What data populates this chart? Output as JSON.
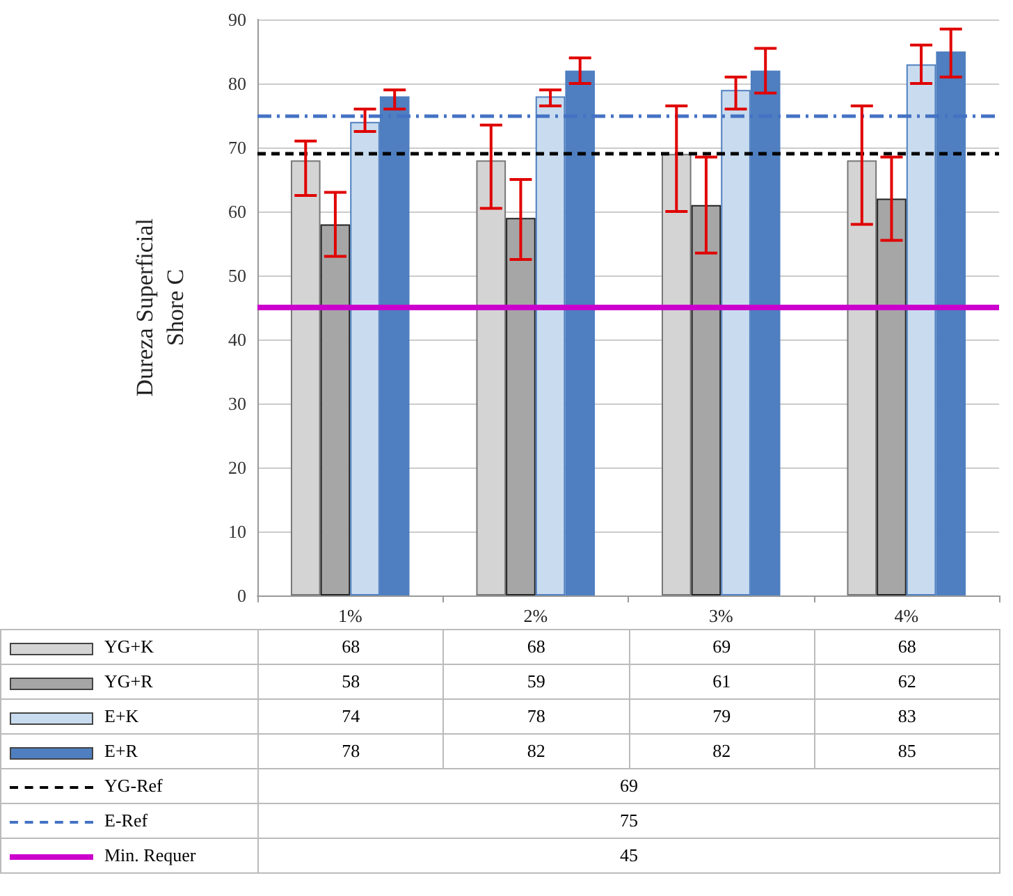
{
  "chart_data": {
    "type": "bar",
    "ylabel": "Dureza Superficial\nShore C",
    "categories": [
      "1%",
      "2%",
      "3%",
      "4%"
    ],
    "series": [
      {
        "name": "YG+K",
        "color": "#d4d4d4",
        "values": [
          68,
          68,
          69,
          68
        ],
        "errors": [
          [
            62.5,
            71
          ],
          [
            60.5,
            73.5
          ],
          [
            60,
            76.5
          ],
          [
            58,
            76.5
          ]
        ]
      },
      {
        "name": "YG+R",
        "color": "#a6a6a6",
        "values": [
          58,
          59,
          61,
          62
        ],
        "errors": [
          [
            53,
            63
          ],
          [
            52.5,
            65
          ],
          [
            53.5,
            68.5
          ],
          [
            55.5,
            68.5
          ]
        ]
      },
      {
        "name": "E+K",
        "color": "#c9dcef",
        "values": [
          74,
          78,
          79,
          83
        ],
        "errors": [
          [
            72.5,
            76
          ],
          [
            76.5,
            79
          ],
          [
            76,
            81
          ],
          [
            80,
            86
          ]
        ]
      },
      {
        "name": "E+R",
        "color": "#4f7fc0",
        "values": [
          78,
          82,
          82,
          85
        ],
        "errors": [
          [
            76,
            79
          ],
          [
            80,
            84
          ],
          [
            78.5,
            85.5
          ],
          [
            81,
            88.5
          ]
        ]
      }
    ],
    "ylim": [
      0,
      90
    ],
    "yticks": [
      0,
      10,
      20,
      30,
      40,
      50,
      60,
      70,
      80,
      90
    ],
    "ref_lines": [
      {
        "axis": "y",
        "value": 69,
        "label": "YG-Ref",
        "color": "#000000",
        "line_style": "dashed"
      },
      {
        "axis": "y",
        "value": 75,
        "label": "E-Ref",
        "color": "#4472c4",
        "line_style": "dashdot"
      },
      {
        "axis": "y",
        "value": 45,
        "label": "Min. Requer",
        "color": "#cc00cc",
        "line_style": "solid"
      }
    ],
    "annotations": [
      "69",
      "75",
      "45"
    ],
    "grid": "y",
    "legend": "bottom",
    "data_labels": true
  }
}
